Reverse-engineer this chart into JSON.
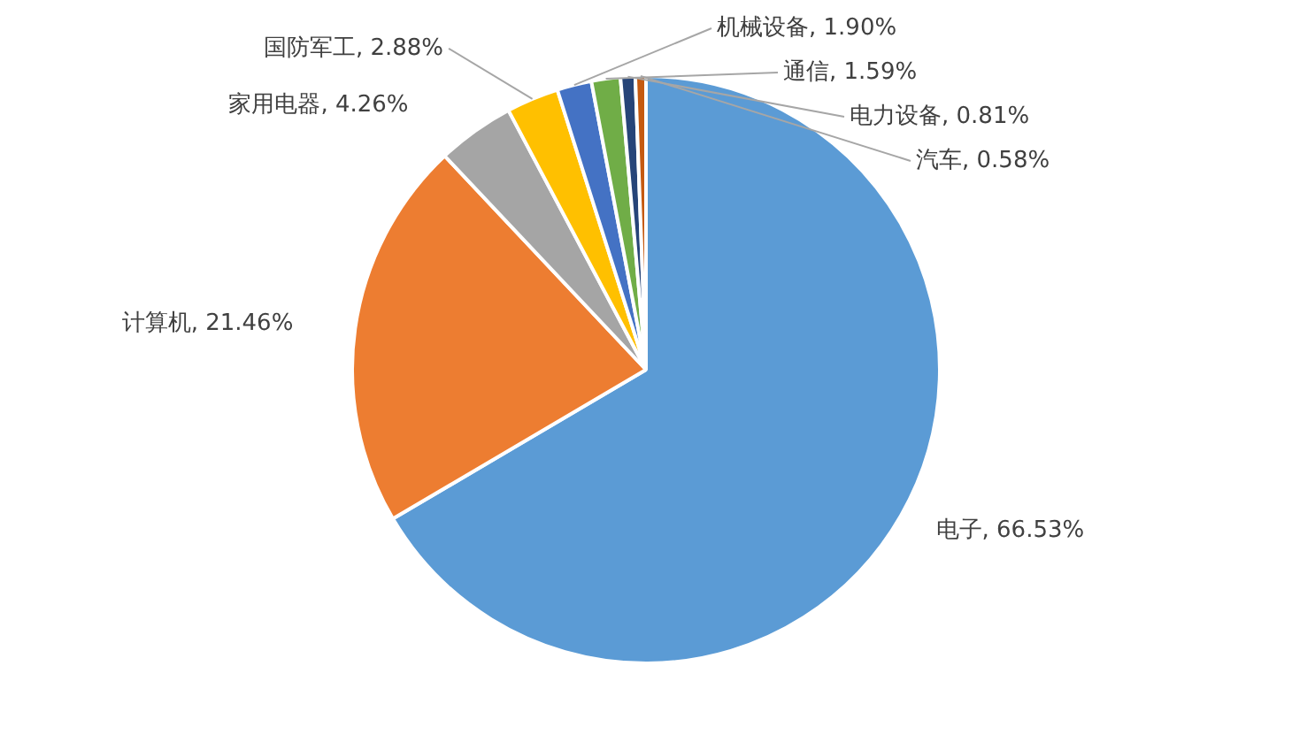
{
  "chart_data": {
    "type": "pie",
    "categories": [
      "电子",
      "计算机",
      "家用电器",
      "国防军工",
      "机械设备",
      "通信",
      "电力设备",
      "汽车"
    ],
    "values": [
      66.53,
      21.46,
      4.26,
      2.88,
      1.9,
      1.59,
      0.81,
      0.58
    ],
    "value_labels": [
      "66.53%",
      "21.46%",
      "4.26%",
      "2.88%",
      "1.90%",
      "1.59%",
      "0.81%",
      "0.58%"
    ],
    "colors": [
      "#5b9bd5",
      "#ed7d31",
      "#a5a5a5",
      "#ffc000",
      "#4472c4",
      "#70ad47",
      "#264478",
      "#c55a11"
    ],
    "legend": false
  }
}
